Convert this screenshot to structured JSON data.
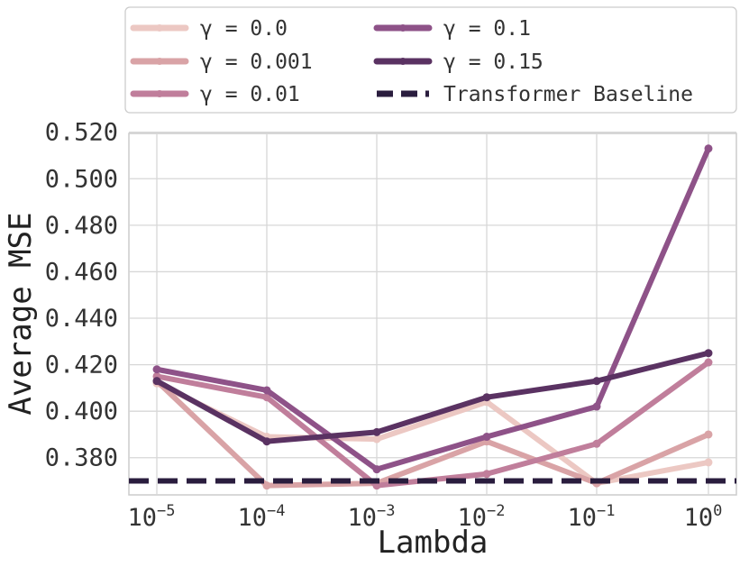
{
  "chart_data": {
    "type": "line",
    "xlabel": "Lambda",
    "ylabel": "Average MSE",
    "x": [
      1e-05,
      0.0001,
      0.001,
      0.01,
      0.1,
      1
    ],
    "x_scale": "log",
    "xtick_labels": [
      {
        "base": "10",
        "exp": "−5"
      },
      {
        "base": "10",
        "exp": "−4"
      },
      {
        "base": "10",
        "exp": "−3"
      },
      {
        "base": "10",
        "exp": "−2"
      },
      {
        "base": "10",
        "exp": "−1"
      },
      {
        "base": "10",
        "exp": "0"
      }
    ],
    "ylim": [
      0.364,
      0.5195
    ],
    "yticks": [
      "0.380",
      "0.400",
      "0.420",
      "0.440",
      "0.460",
      "0.480",
      "0.500",
      "0.520"
    ],
    "grid": true,
    "legend_position": "top-center, above plot",
    "series": [
      {
        "name": "γ = 0.0",
        "color": "#ecc8c3",
        "values": [
          0.412,
          0.389,
          0.388,
          0.404,
          0.369,
          0.378
        ]
      },
      {
        "name": "γ = 0.001",
        "color": "#d9a3a6",
        "values": [
          0.413,
          0.368,
          0.369,
          0.387,
          0.369,
          0.39
        ]
      },
      {
        "name": "γ = 0.01",
        "color": "#c07e9b",
        "values": [
          0.415,
          0.406,
          0.368,
          0.373,
          0.386,
          0.421
        ]
      },
      {
        "name": "γ = 0.1",
        "color": "#8e5288",
        "values": [
          0.418,
          0.409,
          0.375,
          0.389,
          0.402,
          0.513
        ]
      },
      {
        "name": "γ = 0.15",
        "color": "#5a3262",
        "values": [
          0.413,
          0.387,
          0.391,
          0.406,
          0.413,
          0.425
        ]
      }
    ],
    "baseline": {
      "name": "Transformer Baseline",
      "value": 0.37,
      "color": "#2a1d3e",
      "style": "dashed"
    }
  }
}
